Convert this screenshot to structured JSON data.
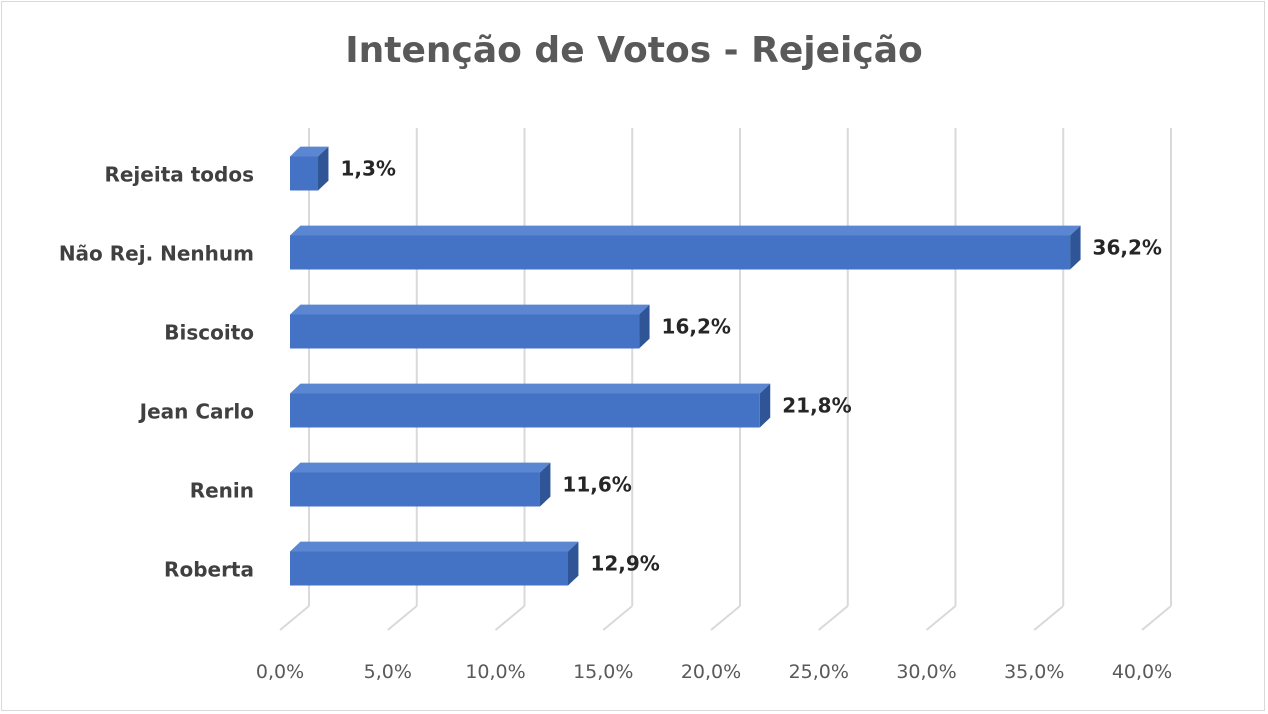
{
  "chart_data": {
    "type": "bar",
    "orientation": "horizontal",
    "title": "Intenção de Votos - Rejeição",
    "categories": [
      "Rejeita todos",
      "Não Rej. Nenhum",
      "Biscoito",
      "Jean Carlo",
      "Renin",
      "Roberta"
    ],
    "values": [
      1.3,
      36.2,
      16.2,
      21.8,
      11.6,
      12.9
    ],
    "value_labels": [
      "1,3%",
      "36,2%",
      "16,2%",
      "21,8%",
      "11,6%",
      "12,9%"
    ],
    "x_ticks": [
      "0,0%",
      "5,0%",
      "10,0%",
      "15,0%",
      "20,0%",
      "25,0%",
      "30,0%",
      "35,0%",
      "40,0%"
    ],
    "xlim": [
      0,
      40
    ],
    "xlabel": "",
    "ylabel": "",
    "grid": true,
    "legend": "none",
    "bar_style": "3d",
    "colors": {
      "bar_front": "#4472c4",
      "bar_top": "#5a86d2",
      "bar_side": "#2f5597",
      "grid": "#d9d9d9"
    }
  }
}
